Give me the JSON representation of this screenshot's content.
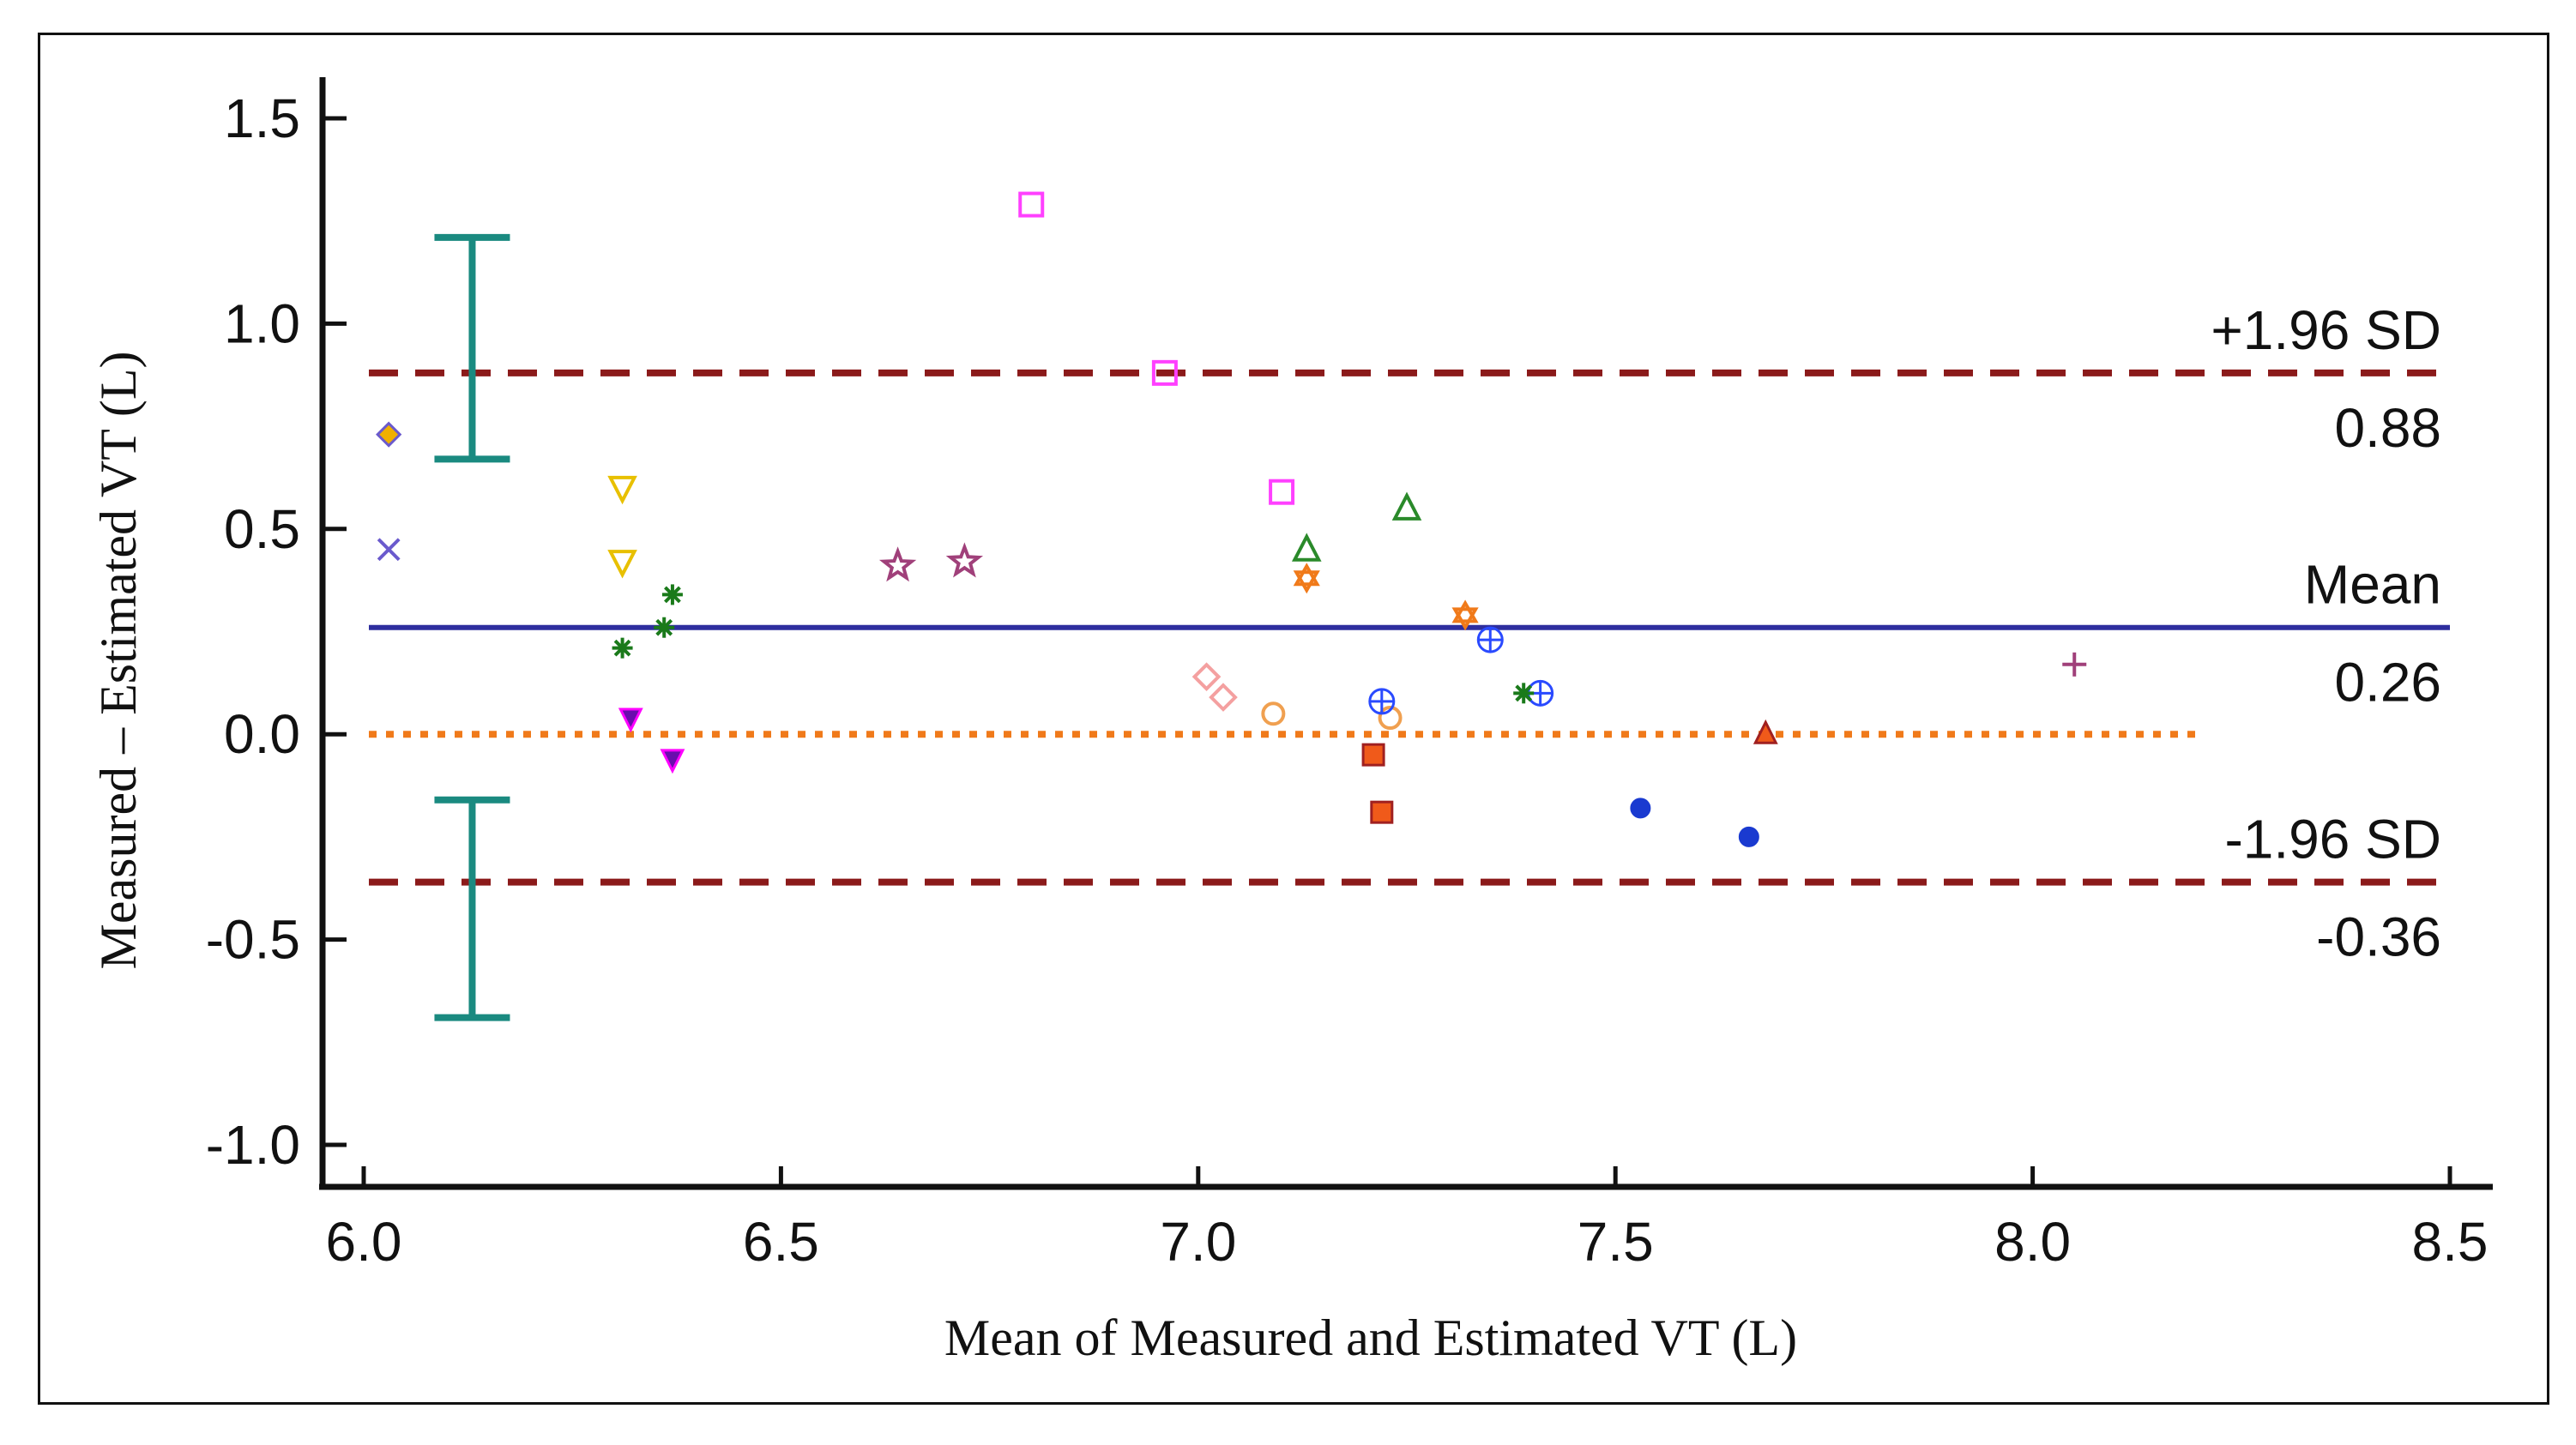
{
  "chart_data": {
    "type": "scatter",
    "title": "",
    "xlabel": "Mean of Measured and Estimated VT (L)",
    "ylabel": "Measured – Estimated VT (L)",
    "xlim": [
      6.0,
      8.5
    ],
    "ylim": [
      -1.0,
      1.5
    ],
    "xticks": [
      "6.0",
      "6.5",
      "7.0",
      "7.5",
      "8.0",
      "8.5"
    ],
    "yticks": [
      "1.5",
      "1.0",
      "0.5",
      "0.0",
      "-0.5",
      "-1.0"
    ],
    "grid": false,
    "reference_lines": [
      {
        "label": "+1.96 SD",
        "value_label": "0.88",
        "y": 0.88,
        "style": "dashed",
        "color": "#8b1a1a"
      },
      {
        "label": "Mean",
        "value_label": "0.26",
        "y": 0.26,
        "style": "solid",
        "color": "#2e2e9e"
      },
      {
        "label": "-1.96 SD",
        "value_label": "-0.36",
        "y": -0.36,
        "style": "dashed",
        "color": "#8b1a1a"
      },
      {
        "label": "",
        "value_label": "",
        "y": 0.0,
        "style": "dotted",
        "color": "#f07a1a"
      }
    ],
    "error_bars": [
      {
        "x": 6.13,
        "y_low": 0.67,
        "y_high": 1.21,
        "color": "#1a8a80"
      },
      {
        "x": 6.13,
        "y_low": -0.69,
        "y_high": -0.16,
        "color": "#1a8a80"
      }
    ],
    "points": [
      {
        "x": 6.03,
        "y": 0.73,
        "marker": "diamond-filled",
        "color": "#f0b000",
        "edge": "#6a5acd"
      },
      {
        "x": 6.03,
        "y": 0.45,
        "marker": "x",
        "color": "#6a5acd"
      },
      {
        "x": 6.31,
        "y": 0.6,
        "marker": "triangle-down",
        "color": "#e8c000"
      },
      {
        "x": 6.31,
        "y": 0.42,
        "marker": "triangle-down",
        "color": "#e8c000"
      },
      {
        "x": 6.31,
        "y": 0.21,
        "marker": "asterisk",
        "color": "#1a7a1a"
      },
      {
        "x": 6.36,
        "y": 0.26,
        "marker": "asterisk",
        "color": "#1a7a1a"
      },
      {
        "x": 6.37,
        "y": 0.34,
        "marker": "asterisk",
        "color": "#1a7a1a"
      },
      {
        "x": 6.32,
        "y": 0.04,
        "marker": "triangle-down-filled",
        "color": "#6a0dad",
        "edge": "#ff00ff"
      },
      {
        "x": 6.37,
        "y": -0.06,
        "marker": "triangle-down-filled",
        "color": "#6a0dad",
        "edge": "#ff00ff"
      },
      {
        "x": 6.64,
        "y": 0.41,
        "marker": "star",
        "color": "#a0407a"
      },
      {
        "x": 6.72,
        "y": 0.42,
        "marker": "star",
        "color": "#a0407a"
      },
      {
        "x": 6.8,
        "y": 1.29,
        "marker": "square",
        "color": "#ff40ff"
      },
      {
        "x": 6.96,
        "y": 0.88,
        "marker": "square",
        "color": "#ff40ff"
      },
      {
        "x": 7.1,
        "y": 0.59,
        "marker": "square",
        "color": "#ff40ff"
      },
      {
        "x": 7.13,
        "y": 0.45,
        "marker": "triangle",
        "color": "#2a8a2a"
      },
      {
        "x": 7.25,
        "y": 0.55,
        "marker": "triangle",
        "color": "#2a8a2a"
      },
      {
        "x": 7.13,
        "y": 0.38,
        "marker": "hexagram",
        "color": "#f07a1a"
      },
      {
        "x": 7.32,
        "y": 0.29,
        "marker": "hexagram",
        "color": "#f07a1a"
      },
      {
        "x": 7.01,
        "y": 0.14,
        "marker": "diamond",
        "color": "#f4a0a0"
      },
      {
        "x": 7.03,
        "y": 0.09,
        "marker": "diamond",
        "color": "#f4a0a0"
      },
      {
        "x": 7.09,
        "y": 0.05,
        "marker": "circle",
        "color": "#f0a050"
      },
      {
        "x": 7.23,
        "y": 0.04,
        "marker": "circle",
        "color": "#f0a050"
      },
      {
        "x": 7.22,
        "y": 0.08,
        "marker": "circle-plus",
        "color": "#2a4aff"
      },
      {
        "x": 7.35,
        "y": 0.23,
        "marker": "circle-plus",
        "color": "#2a4aff"
      },
      {
        "x": 7.41,
        "y": 0.1,
        "marker": "circle-plus",
        "color": "#2a4aff"
      },
      {
        "x": 7.39,
        "y": 0.1,
        "marker": "asterisk",
        "color": "#1a7a1a"
      },
      {
        "x": 7.21,
        "y": -0.05,
        "marker": "square-filled",
        "color": "#f05a1a",
        "edge": "#a02020"
      },
      {
        "x": 7.22,
        "y": -0.19,
        "marker": "square-filled",
        "color": "#f05a1a",
        "edge": "#a02020"
      },
      {
        "x": 7.53,
        "y": -0.18,
        "marker": "circle-filled",
        "color": "#1a3ad0"
      },
      {
        "x": 7.66,
        "y": -0.25,
        "marker": "circle-filled",
        "color": "#1a3ad0"
      },
      {
        "x": 7.68,
        "y": 0.0,
        "marker": "triangle-filled",
        "color": "#f05a1a",
        "edge": "#a02020"
      },
      {
        "x": 8.05,
        "y": 0.17,
        "marker": "plus",
        "color": "#a0407a"
      }
    ]
  }
}
